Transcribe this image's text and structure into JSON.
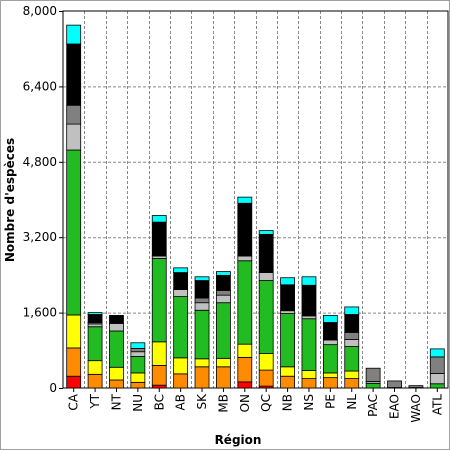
{
  "chart_data": {
    "type": "bar",
    "stacked": true,
    "title": "",
    "xlabel": "Région",
    "ylabel": "Nombre d'espèces",
    "ylim": [
      0,
      8000
    ],
    "yticks": [
      0,
      1600,
      3200,
      4800,
      6400,
      8000
    ],
    "ytick_labels": [
      "0",
      "1,600",
      "3,200",
      "4,800",
      "6,400",
      "8,000"
    ],
    "grid": true,
    "legend": "none",
    "categories": [
      "CA",
      "YT",
      "NT",
      "NU",
      "BC",
      "AB",
      "SK",
      "MB",
      "ON",
      "QC",
      "NB",
      "NS",
      "PE",
      "NL",
      "PAC",
      "EAO",
      "WAO",
      "ATL"
    ],
    "series": [
      {
        "color": "#ff0000",
        "values": [
          250,
          0,
          0,
          0,
          60,
          0,
          0,
          0,
          130,
          40,
          0,
          0,
          0,
          0,
          0,
          0,
          0,
          0
        ]
      },
      {
        "color": "#ff8c00",
        "values": [
          600,
          290,
          170,
          120,
          420,
          300,
          450,
          450,
          520,
          340,
          250,
          200,
          220,
          200,
          0,
          0,
          0,
          0
        ]
      },
      {
        "color": "#ffff00",
        "values": [
          700,
          290,
          270,
          200,
          500,
          340,
          170,
          180,
          280,
          350,
          200,
          170,
          100,
          160,
          0,
          0,
          0,
          0
        ]
      },
      {
        "color": "#22bb22",
        "values": [
          3500,
          720,
          770,
          350,
          1770,
          1300,
          1030,
          1180,
          1770,
          1550,
          1130,
          1100,
          600,
          520,
          100,
          0,
          0,
          90
        ]
      },
      {
        "color": "#c0c0c0",
        "values": [
          550,
          60,
          160,
          100,
          50,
          150,
          160,
          160,
          100,
          170,
          60,
          60,
          100,
          150,
          40,
          10,
          10,
          220
        ]
      },
      {
        "color": "#808080",
        "values": [
          400,
          30,
          0,
          70,
          0,
          0,
          100,
          100,
          0,
          0,
          0,
          0,
          0,
          150,
          280,
          140,
          40,
          350
        ]
      },
      {
        "color": "#000000",
        "values": [
          1300,
          170,
          170,
          0,
          720,
          360,
          370,
          320,
          1120,
          810,
          550,
          650,
          370,
          380,
          0,
          0,
          0,
          0
        ]
      },
      {
        "color": "#00ffff",
        "values": [
          400,
          40,
          0,
          120,
          140,
          100,
          80,
          80,
          130,
          80,
          150,
          180,
          150,
          160,
          0,
          0,
          0,
          170
        ]
      }
    ]
  }
}
